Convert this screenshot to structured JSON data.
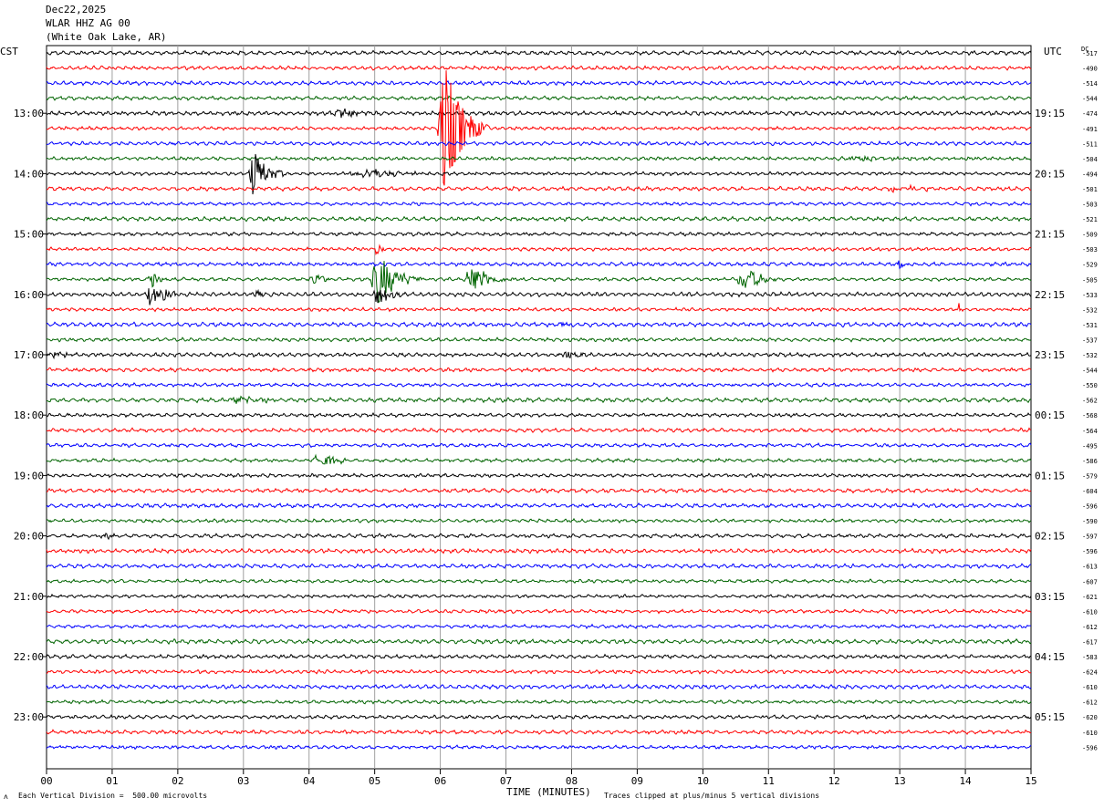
{
  "header": {
    "date": "Dec22,2025",
    "station": "WLAR HHZ AG 00",
    "location": "(White Oak Lake, AR)"
  },
  "labels": {
    "left_tz": "CST",
    "right_tz": "UTC",
    "dc_label": "DC",
    "x_title": "TIME (MINUTES)",
    "scale_note": "Each Vertical Division =  500.00 microvolts",
    "clip_note": "Traces clipped at plus/minus 5 vertical divisions",
    "corner_mark": "ʌ"
  },
  "colors": {
    "trace_cycle": [
      "#000000",
      "#ff0000",
      "#0000ff",
      "#006400"
    ],
    "grid": "#a0a0a0"
  },
  "chart_data": {
    "type": "line",
    "x_title": "TIME (MINUTES)",
    "x_ticks": [
      "00",
      "01",
      "02",
      "03",
      "04",
      "05",
      "06",
      "07",
      "08",
      "09",
      "10",
      "11",
      "12",
      "13",
      "14",
      "15"
    ],
    "xlim": [
      0,
      15
    ],
    "trace_count": 47,
    "trace_minutes": 15,
    "left_hour_labels": [
      "13:00",
      "14:00",
      "15:00",
      "16:00",
      "17:00",
      "18:00",
      "19:00",
      "20:00",
      "21:00",
      "22:00",
      "23:00"
    ],
    "right_hour_labels": [
      "19:15",
      "20:15",
      "21:15",
      "22:15",
      "23:15",
      "00:15",
      "01:15",
      "02:15",
      "03:15",
      "04:15",
      "05:15"
    ],
    "first_labeled_trace": 4,
    "dc_offsets": [
      "-517",
      "-490",
      "-514",
      "-544",
      "-474",
      "-491",
      "-511",
      "-504",
      "-494",
      "-501",
      "-503",
      "-521",
      "-509",
      "-503",
      "-529",
      "-505",
      "-533",
      "-532",
      "-531",
      "-537",
      "-532",
      "-544",
      "-550",
      "-562",
      "-568",
      "-564",
      "-495",
      "-586",
      "-579",
      "-604",
      "-596",
      "-590",
      "-597",
      "-596",
      "-613",
      "-607",
      "-621",
      "-610",
      "-612",
      "-617",
      "-583",
      "-624",
      "-610",
      "-612",
      "-620",
      "-610",
      "-596"
    ],
    "events": [
      {
        "trace": 4,
        "minute": 4.6,
        "amp": 6,
        "width": 0.35,
        "dur": 0.6
      },
      {
        "trace": 5,
        "minute": 6.05,
        "amp": 80,
        "width": 0.1,
        "dur": 0.7
      },
      {
        "trace": 7,
        "minute": 12.5,
        "amp": 3,
        "width": 0.6,
        "dur": 1.0
      },
      {
        "trace": 8,
        "minute": 3.15,
        "amp": 28,
        "width": 0.07,
        "dur": 0.5
      },
      {
        "trace": 8,
        "minute": 5.0,
        "amp": 5,
        "width": 0.6,
        "dur": 1.0
      },
      {
        "trace": 9,
        "minute": 12.9,
        "amp": 7,
        "width": 0.03,
        "dur": 0.1
      },
      {
        "trace": 9,
        "minute": 13.15,
        "amp": 6,
        "width": 0.03,
        "dur": 0.1
      },
      {
        "trace": 9,
        "minute": 13.4,
        "amp": 5,
        "width": 0.03,
        "dur": 0.1
      },
      {
        "trace": 13,
        "minute": 5.05,
        "amp": 7,
        "width": 0.08,
        "dur": 0.2
      },
      {
        "trace": 14,
        "minute": 13.0,
        "amp": 6,
        "width": 0.05,
        "dur": 0.2
      },
      {
        "trace": 15,
        "minute": 5.05,
        "amp": 30,
        "width": 0.12,
        "dur": 0.7
      },
      {
        "trace": 15,
        "minute": 6.5,
        "amp": 18,
        "width": 0.15,
        "dur": 0.6
      },
      {
        "trace": 15,
        "minute": 10.65,
        "amp": 14,
        "width": 0.15,
        "dur": 0.6
      },
      {
        "trace": 15,
        "minute": 4.1,
        "amp": 8,
        "width": 0.1,
        "dur": 0.3
      },
      {
        "trace": 15,
        "minute": 1.6,
        "amp": 10,
        "width": 0.1,
        "dur": 0.3
      },
      {
        "trace": 16,
        "minute": 1.58,
        "amp": 14,
        "width": 0.05,
        "dur": 0.3
      },
      {
        "trace": 16,
        "minute": 1.8,
        "amp": 8,
        "width": 0.05,
        "dur": 0.3
      },
      {
        "trace": 16,
        "minute": 3.2,
        "amp": 6,
        "width": 0.04,
        "dur": 0.15
      },
      {
        "trace": 16,
        "minute": 5.05,
        "amp": 14,
        "width": 0.1,
        "dur": 0.5
      },
      {
        "trace": 17,
        "minute": 13.9,
        "amp": 8,
        "width": 0.02,
        "dur": 0.06
      },
      {
        "trace": 18,
        "minute": 7.9,
        "amp": 4,
        "width": 0.15,
        "dur": 0.3
      },
      {
        "trace": 20,
        "minute": 0.1,
        "amp": 4,
        "width": 0.2,
        "dur": 0.4
      },
      {
        "trace": 20,
        "minute": 7.95,
        "amp": 5,
        "width": 0.2,
        "dur": 0.5
      },
      {
        "trace": 23,
        "minute": 3.0,
        "amp": 3,
        "width": 0.5,
        "dur": 1.0
      },
      {
        "trace": 27,
        "minute": 4.15,
        "amp": 10,
        "width": 0.12,
        "dur": 0.6
      },
      {
        "trace": 32,
        "minute": 0.9,
        "amp": 4,
        "width": 0.1,
        "dur": 0.2
      }
    ]
  }
}
